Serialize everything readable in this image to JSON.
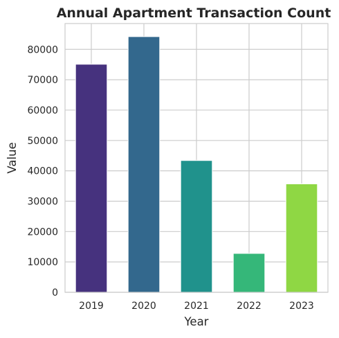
{
  "chart_data": {
    "type": "bar",
    "title": "Annual Apartment Transaction Count",
    "xlabel": "Year",
    "ylabel": "Value",
    "categories": [
      "2019",
      "2020",
      "2021",
      "2022",
      "2023"
    ],
    "values": [
      75100,
      84200,
      43400,
      12800,
      35700
    ],
    "colors": [
      "#46327e",
      "#33688d",
      "#20928c",
      "#35b779",
      "#8fd744"
    ],
    "ylim": [
      0,
      88500
    ],
    "yticks": [
      0,
      10000,
      20000,
      30000,
      40000,
      50000,
      60000,
      70000,
      80000
    ],
    "grid": true
  }
}
